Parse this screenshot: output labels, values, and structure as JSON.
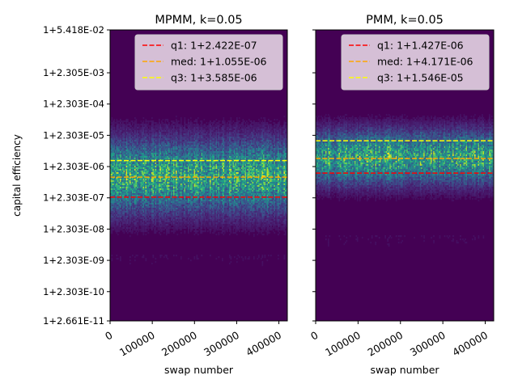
{
  "figure": {
    "ylabel": "capital efficiency",
    "colors": {
      "background": "#440154",
      "q1": "#ff0000",
      "med": "#ffa500",
      "q3": "#ffff00",
      "legend_bg": "#e2cfe2"
    }
  },
  "chart_data": [
    {
      "type": "heatmap",
      "title": "MPMM, k=0.05",
      "xlabel": "swap number",
      "ylabel": "capital efficiency",
      "xlim": [
        0,
        420000
      ],
      "xticks": [
        0,
        100000,
        200000,
        300000,
        400000
      ],
      "xtick_labels": [
        "0",
        "100000",
        "200000",
        "300000",
        "400000"
      ],
      "ylim_log10_excess": [
        -10.5745,
        -1.2662
      ],
      "yticks_log10_excess": [
        -10.5745,
        -9.6377,
        -8.6377,
        -7.6377,
        -6.6377,
        -5.6377,
        -4.6377,
        -3.6377,
        -2.6377,
        -1.2662
      ],
      "ytick_labels": [
        "1+2.661E-11",
        "1+2.303E-10",
        "1+2.303E-09",
        "1+2.303E-08",
        "1+2.303E-07",
        "1+2.303E-06",
        "1+2.303E-05",
        "1+2.303E-04",
        "1+2.305E-03",
        "1+5.418E-02"
      ],
      "density": {
        "center_log10": -5.95,
        "spread": 0.75,
        "upper_cut_log10": -3.85
      },
      "legend": "top-right",
      "series": [
        {
          "name": "q1",
          "label": "q1: 1+2.422E-07",
          "value": 2.422e-07,
          "color": "#ff0000"
        },
        {
          "name": "med",
          "label": "med: 1+1.055E-06",
          "value": 1.055e-06,
          "color": "#ffa500"
        },
        {
          "name": "q3",
          "label": "q3: 1+3.585E-06",
          "value": 3.585e-06,
          "color": "#ffff00"
        }
      ]
    },
    {
      "type": "heatmap",
      "title": "PMM, k=0.05",
      "xlabel": "swap number",
      "ylabel": "",
      "xlim": [
        0,
        420000
      ],
      "xticks": [
        0,
        100000,
        200000,
        300000,
        400000
      ],
      "xtick_labels": [
        "0",
        "100000",
        "200000",
        "300000",
        "400000"
      ],
      "ylim_log10_excess": [
        -10.5745,
        -1.2662
      ],
      "yticks_log10_excess": [
        -10.5745,
        -9.6377,
        -8.6377,
        -7.6377,
        -6.6377,
        -5.6377,
        -4.6377,
        -3.6377,
        -2.6377,
        -1.2662
      ],
      "ytick_labels": [],
      "density": {
        "center_log10": -5.35,
        "spread": 0.55,
        "upper_cut_log10": -3.55
      },
      "legend": "top-right",
      "series": [
        {
          "name": "q1",
          "label": "q1: 1+1.427E-06",
          "value": 1.427e-06,
          "color": "#ff0000"
        },
        {
          "name": "med",
          "label": "med: 1+4.171E-06",
          "value": 4.171e-06,
          "color": "#ffa500"
        },
        {
          "name": "q3",
          "label": "q3: 1+1.546E-05",
          "value": 1.546e-05,
          "color": "#ffff00"
        }
      ]
    }
  ]
}
